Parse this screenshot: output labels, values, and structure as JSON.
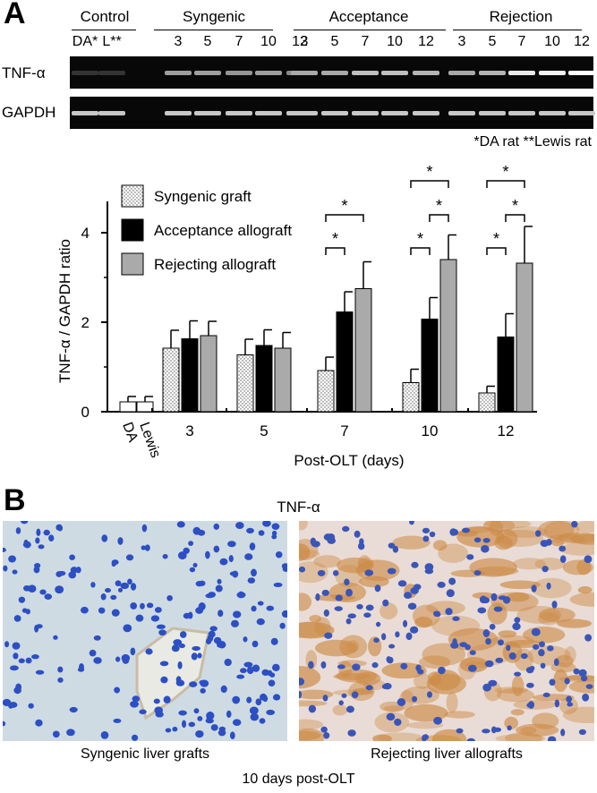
{
  "panel_a": {
    "letter": "A",
    "groups": [
      {
        "label": "Control",
        "lanes": [
          "DA*",
          "L**"
        ]
      },
      {
        "label": "Syngenic",
        "lanes": [
          "3",
          "5",
          "7",
          "10",
          "12"
        ]
      },
      {
        "label": "Acceptance",
        "lanes": [
          "3",
          "5",
          "7",
          "10",
          "12"
        ]
      },
      {
        "label": "Rejection",
        "lanes": [
          "3",
          "5",
          "7",
          "10",
          "12"
        ]
      }
    ],
    "gel_rows": [
      "TNF-α",
      "GAPDH"
    ],
    "tnf_band_intensity": [
      0.05,
      0.05,
      0.55,
      0.55,
      0.5,
      0.55,
      0.45,
      0.6,
      0.6,
      0.7,
      0.7,
      0.65,
      0.6,
      0.65,
      0.9,
      0.95,
      1.0
    ],
    "footnote": "*DA rat **Lewis rat"
  },
  "chart_data": {
    "type": "bar",
    "ylabel": "TNF-α / GAPDH ratio",
    "xlabel": "Post-OLT (days)",
    "ylim": [
      0,
      4.5
    ],
    "yticks": [
      0,
      2,
      4
    ],
    "controls": [
      {
        "label": "DA",
        "value": 0.22,
        "error": 0.12
      },
      {
        "label": "Lewis",
        "value": 0.22,
        "error": 0.12
      }
    ],
    "categories": [
      "3",
      "5",
      "7",
      "10",
      "12"
    ],
    "series": [
      {
        "name": "Syngenic graft",
        "values": [
          1.42,
          1.27,
          0.92,
          0.65,
          0.42
        ],
        "errors": [
          0.4,
          0.35,
          0.3,
          0.3,
          0.15
        ]
      },
      {
        "name": "Acceptance allograft",
        "values": [
          1.63,
          1.48,
          2.23,
          2.07,
          1.67
        ],
        "errors": [
          0.4,
          0.35,
          0.45,
          0.48,
          0.52
        ]
      },
      {
        "name": "Rejecting allograft",
        "values": [
          1.7,
          1.42,
          2.75,
          3.4,
          3.32
        ],
        "errors": [
          0.32,
          0.35,
          0.6,
          0.55,
          0.82
        ]
      }
    ],
    "significance_marker": "*",
    "legend_position": "top-left"
  },
  "panel_b": {
    "letter": "B",
    "title": "TNF-α",
    "captions": [
      "Syngenic liver grafts",
      "Rejecting liver allografts"
    ],
    "footer": "10 days post-OLT"
  }
}
